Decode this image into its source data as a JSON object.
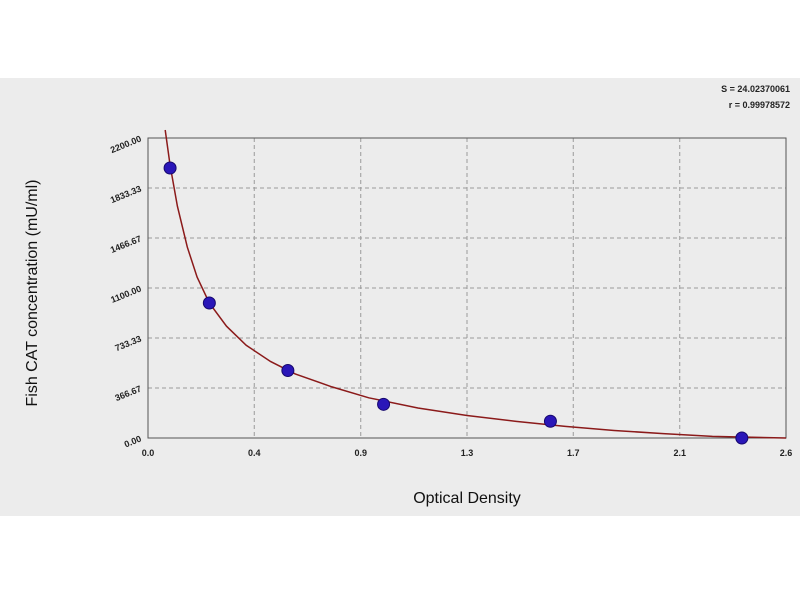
{
  "chart_data": {
    "type": "scatter",
    "xlabel": "Optical Density",
    "ylabel": "Fish CAT concentration (mU/ml)",
    "xlim": [
      0,
      2.6
    ],
    "ylim": [
      0,
      2200
    ],
    "x_ticks": [
      "0.0",
      "0.4",
      "0.9",
      "1.3",
      "1.7",
      "2.1",
      "2.6"
    ],
    "x_tick_values": [
      0.0,
      0.433,
      0.867,
      1.3,
      1.733,
      2.167,
      2.6
    ],
    "y_ticks": [
      "0.00",
      "366.67",
      "733.33",
      "1100.00",
      "1466.67",
      "1833.33",
      "2200.00"
    ],
    "y_tick_values": [
      0.0,
      366.67,
      733.33,
      1100.0,
      1466.67,
      1833.33,
      2200.0
    ],
    "grid": true,
    "points": [
      {
        "x": 0.09,
        "y": 1980
      },
      {
        "x": 0.25,
        "y": 990
      },
      {
        "x": 0.57,
        "y": 495
      },
      {
        "x": 0.96,
        "y": 247
      },
      {
        "x": 1.64,
        "y": 123
      },
      {
        "x": 2.42,
        "y": 0
      }
    ],
    "fit_curve": {
      "x": [
        0.07,
        0.09,
        0.12,
        0.16,
        0.2,
        0.25,
        0.32,
        0.4,
        0.5,
        0.6,
        0.75,
        0.9,
        1.1,
        1.3,
        1.5,
        1.7,
        1.9,
        2.1,
        2.3,
        2.6
      ],
      "y": [
        2300,
        2000,
        1700,
        1400,
        1180,
        990,
        820,
        680,
        560,
        470,
        375,
        295,
        220,
        165,
        122,
        85,
        55,
        32,
        12,
        0
      ]
    },
    "fit_stats": [
      "S = 24.02370061",
      "r = 0.99978572"
    ],
    "colors": {
      "points": "#2a16b8",
      "curve": "#8b1a1a",
      "background": "#ececec"
    }
  }
}
